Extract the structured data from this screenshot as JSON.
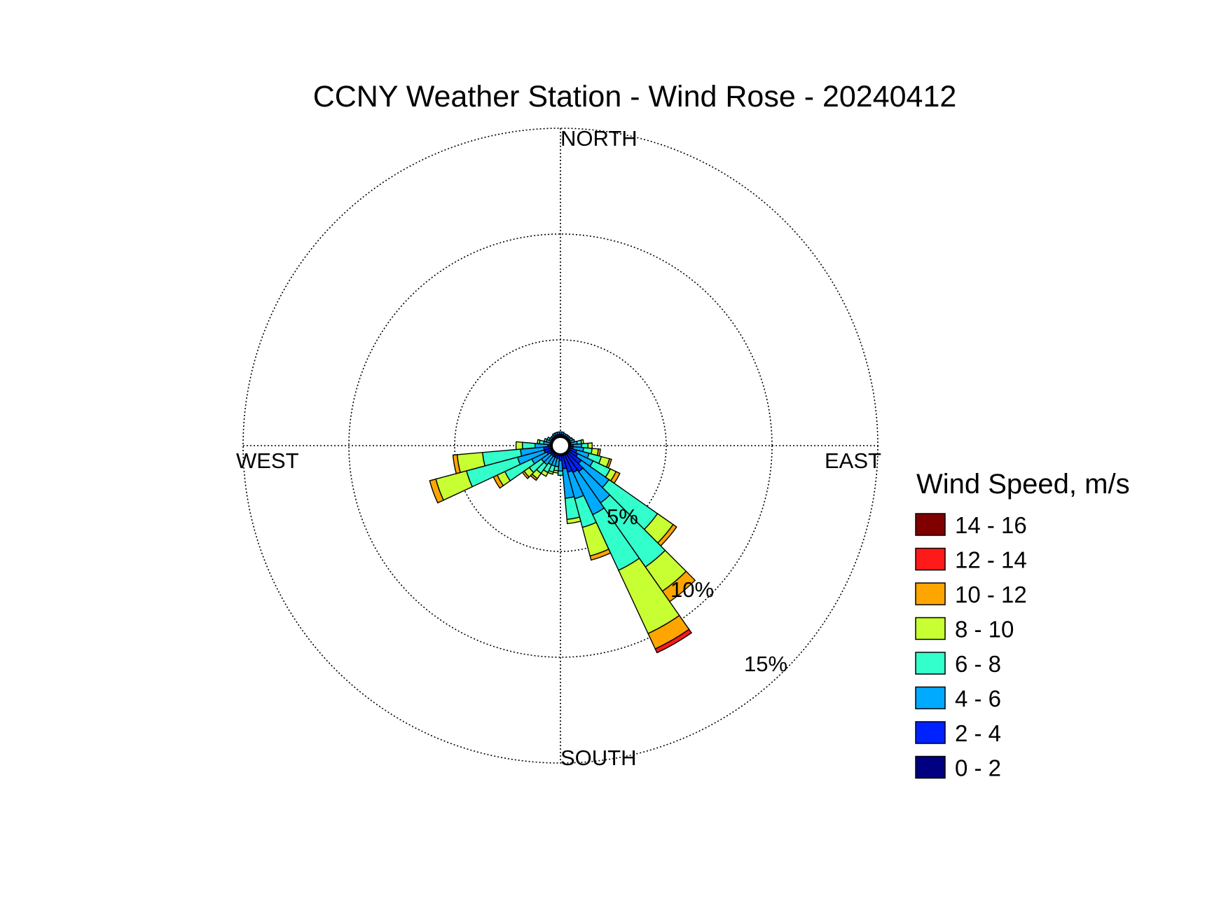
{
  "chart_data": {
    "type": "windrose",
    "title": "CCNY Weather Station - Wind Rose - 20240412",
    "directions_labels": {
      "north": "NORTH",
      "east": "EAST",
      "south": "SOUTH",
      "west": "WEST"
    },
    "ring_labels": [
      "5%",
      "10%",
      "15%"
    ],
    "ring_values": [
      5,
      10,
      15
    ],
    "rmax": 15,
    "grid": true,
    "legend": {
      "title": "Wind Speed, m/s",
      "placement": "right",
      "bins": [
        {
          "label": "14 - 16",
          "color": "#800000"
        },
        {
          "label": "12 - 14",
          "color": "#ff1a1a"
        },
        {
          "label": "10 - 12",
          "color": "#ffa500"
        },
        {
          "label": "8 - 10",
          "color": "#c8ff33"
        },
        {
          "label": "6 - 8",
          "color": "#33ffcc"
        },
        {
          "label": "4 - 6",
          "color": "#00aaff"
        },
        {
          "label": "2 - 4",
          "color": "#0022ff"
        },
        {
          "label": "0 - 2",
          "color": "#000080"
        }
      ]
    },
    "bin_order_from_center": [
      "0 - 2",
      "2 - 4",
      "4 - 6",
      "6 - 8",
      "8 - 10",
      "10 - 12",
      "12 - 14",
      "14 - 16"
    ],
    "sector_width_deg": 10,
    "sectors": [
      {
        "direction_deg": 0,
        "values": [
          0.3,
          0.25,
          0.1,
          0,
          0,
          0,
          0,
          0
        ]
      },
      {
        "direction_deg": 10,
        "values": [
          0.3,
          0.25,
          0.1,
          0,
          0,
          0,
          0,
          0
        ]
      },
      {
        "direction_deg": 20,
        "values": [
          0.3,
          0.2,
          0.1,
          0,
          0,
          0,
          0,
          0
        ]
      },
      {
        "direction_deg": 30,
        "values": [
          0.3,
          0.2,
          0.1,
          0,
          0,
          0,
          0,
          0
        ]
      },
      {
        "direction_deg": 40,
        "values": [
          0.3,
          0.2,
          0.1,
          0,
          0,
          0,
          0,
          0
        ]
      },
      {
        "direction_deg": 50,
        "values": [
          0.3,
          0.2,
          0.1,
          0,
          0,
          0,
          0,
          0
        ]
      },
      {
        "direction_deg": 60,
        "values": [
          0.3,
          0.2,
          0.15,
          0,
          0,
          0,
          0,
          0
        ]
      },
      {
        "direction_deg": 70,
        "values": [
          0.3,
          0.2,
          0.2,
          0,
          0,
          0,
          0,
          0
        ]
      },
      {
        "direction_deg": 80,
        "values": [
          0.3,
          0.2,
          0.3,
          0.2,
          0.1,
          0,
          0,
          0
        ]
      },
      {
        "direction_deg": 90,
        "values": [
          0.3,
          0.3,
          0.4,
          0.3,
          0.2,
          0,
          0,
          0
        ]
      },
      {
        "direction_deg": 100,
        "values": [
          0.3,
          0.3,
          0.5,
          0.4,
          0.3,
          0.1,
          0,
          0
        ]
      },
      {
        "direction_deg": 110,
        "values": [
          0.4,
          0.4,
          0.6,
          0.6,
          0.4,
          0.1,
          0,
          0
        ]
      },
      {
        "direction_deg": 120,
        "values": [
          0.4,
          0.5,
          0.8,
          0.9,
          0.3,
          0.2,
          0,
          0
        ]
      },
      {
        "direction_deg": 130,
        "values": [
          0.4,
          0.8,
          1.6,
          2.8,
          0.9,
          0.2,
          0,
          0
        ]
      },
      {
        "direction_deg": 140,
        "values": [
          0.5,
          1.0,
          1.8,
          3.7,
          1.4,
          0.6,
          0,
          0
        ]
      },
      {
        "direction_deg": 150,
        "values": [
          0.4,
          1.0,
          2.2,
          2.9,
          3.3,
          0.8,
          0.2,
          0
        ]
      },
      {
        "direction_deg": 160,
        "values": [
          0.4,
          0.9,
          1.3,
          1.4,
          1.4,
          0.2,
          0,
          0
        ]
      },
      {
        "direction_deg": 170,
        "values": [
          0.4,
          0.7,
          1.4,
          1.0,
          0.2,
          0,
          0,
          0
        ]
      },
      {
        "direction_deg": 180,
        "values": [
          0.3,
          0.4,
          0.5,
          0.2,
          0,
          0,
          0,
          0
        ]
      },
      {
        "direction_deg": 190,
        "values": [
          0.3,
          0.3,
          0.4,
          0.2,
          0.1,
          0,
          0,
          0
        ]
      },
      {
        "direction_deg": 200,
        "values": [
          0.3,
          0.3,
          0.4,
          0.3,
          0.1,
          0,
          0,
          0
        ]
      },
      {
        "direction_deg": 210,
        "values": [
          0.3,
          0.3,
          0.4,
          0.4,
          0.2,
          0,
          0,
          0
        ]
      },
      {
        "direction_deg": 220,
        "values": [
          0.3,
          0.3,
          0.5,
          0.5,
          0.3,
          0.1,
          0,
          0
        ]
      },
      {
        "direction_deg": 230,
        "values": [
          0.3,
          0.3,
          0.5,
          0.7,
          0.3,
          0.1,
          0,
          0
        ]
      },
      {
        "direction_deg": 240,
        "values": [
          0.3,
          0.4,
          0.8,
          1.4,
          0.4,
          0.2,
          0,
          0
        ]
      },
      {
        "direction_deg": 250,
        "values": [
          0.3,
          0.5,
          1.3,
          2.5,
          1.5,
          0.3,
          0,
          0
        ]
      },
      {
        "direction_deg": 260,
        "values": [
          0.3,
          0.5,
          1.1,
          1.8,
          1.2,
          0.2,
          0,
          0
        ]
      },
      {
        "direction_deg": 270,
        "values": [
          0.3,
          0.3,
          0.6,
          0.6,
          0.3,
          0,
          0,
          0
        ]
      },
      {
        "direction_deg": 280,
        "values": [
          0.3,
          0.2,
          0.3,
          0.2,
          0.1,
          0,
          0,
          0
        ]
      },
      {
        "direction_deg": 290,
        "values": [
          0.3,
          0.2,
          0.2,
          0.1,
          0,
          0,
          0,
          0
        ]
      },
      {
        "direction_deg": 300,
        "values": [
          0.3,
          0.2,
          0.1,
          0.1,
          0,
          0,
          0,
          0
        ]
      },
      {
        "direction_deg": 310,
        "values": [
          0.3,
          0.2,
          0.1,
          0,
          0,
          0,
          0,
          0
        ]
      },
      {
        "direction_deg": 320,
        "values": [
          0.3,
          0.2,
          0.1,
          0,
          0,
          0,
          0,
          0
        ]
      },
      {
        "direction_deg": 330,
        "values": [
          0.3,
          0.25,
          0.1,
          0,
          0,
          0,
          0,
          0
        ]
      },
      {
        "direction_deg": 340,
        "values": [
          0.3,
          0.25,
          0.1,
          0,
          0,
          0,
          0,
          0
        ]
      },
      {
        "direction_deg": 350,
        "values": [
          0.3,
          0.25,
          0.1,
          0,
          0,
          0,
          0,
          0
        ]
      }
    ]
  }
}
